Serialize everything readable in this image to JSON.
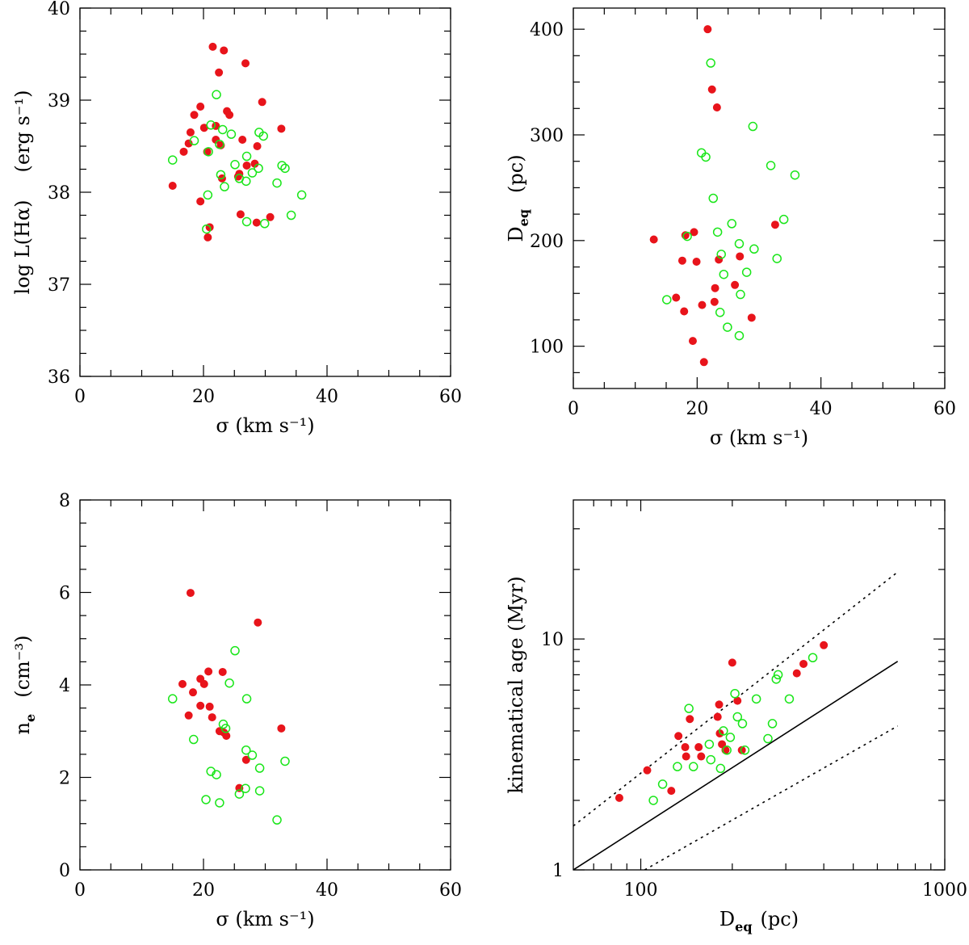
{
  "colors": {
    "red": "#e8141b",
    "green": "#19e619",
    "axis": "#000000"
  },
  "chart_data": [
    {
      "id": "p1",
      "type": "scatter",
      "xlabel": "σ (km s⁻¹)",
      "ylabel_parts": [
        "log L(Hα)",
        "(erg s⁻¹)"
      ],
      "xlim": [
        0,
        60
      ],
      "ylim": [
        36,
        40
      ],
      "xticks": [
        0,
        20,
        40,
        60
      ],
      "xtick_labels": [
        "0",
        "20",
        "40",
        "60"
      ],
      "yticks": [
        36,
        37,
        38,
        39,
        40
      ],
      "ytick_labels": [
        "36",
        "37",
        "38",
        "39",
        "40"
      ],
      "series": [
        {
          "name": "red filled",
          "color": "red",
          "marker": "filled",
          "points": [
            [
              21.5,
              39.58
            ],
            [
              23.3,
              39.54
            ],
            [
              26.8,
              39.4
            ],
            [
              22.5,
              39.3
            ],
            [
              29.5,
              38.98
            ],
            [
              19.5,
              38.93
            ],
            [
              18.5,
              38.84
            ],
            [
              23.8,
              38.88
            ],
            [
              24.2,
              38.84
            ],
            [
              20.1,
              38.7
            ],
            [
              22.0,
              38.72
            ],
            [
              32.6,
              38.69
            ],
            [
              17.9,
              38.65
            ],
            [
              22.0,
              38.57
            ],
            [
              26.3,
              38.57
            ],
            [
              17.6,
              38.53
            ],
            [
              28.7,
              38.5
            ],
            [
              16.8,
              38.44
            ],
            [
              20.6,
              38.44
            ],
            [
              22.8,
              38.51
            ],
            [
              23.0,
              38.15
            ],
            [
              27.0,
              38.29
            ],
            [
              28.3,
              38.31
            ],
            [
              25.8,
              38.2
            ],
            [
              25.6,
              38.17
            ],
            [
              15.0,
              38.07
            ],
            [
              19.5,
              37.9
            ],
            [
              30.8,
              37.73
            ],
            [
              26.0,
              37.76
            ],
            [
              28.6,
              37.67
            ],
            [
              21.0,
              37.62
            ],
            [
              20.7,
              37.51
            ]
          ]
        },
        {
          "name": "green open",
          "color": "green",
          "marker": "open",
          "points": [
            [
              22.1,
              39.06
            ],
            [
              21.2,
              38.73
            ],
            [
              23.1,
              38.68
            ],
            [
              24.5,
              38.63
            ],
            [
              29.0,
              38.65
            ],
            [
              29.7,
              38.61
            ],
            [
              18.5,
              38.56
            ],
            [
              22.6,
              38.52
            ],
            [
              20.8,
              38.44
            ],
            [
              15.0,
              38.35
            ],
            [
              25.1,
              38.3
            ],
            [
              27.0,
              38.39
            ],
            [
              28.9,
              38.26
            ],
            [
              32.7,
              38.29
            ],
            [
              33.2,
              38.26
            ],
            [
              22.8,
              38.19
            ],
            [
              25.8,
              38.15
            ],
            [
              26.9,
              38.12
            ],
            [
              27.9,
              38.21
            ],
            [
              23.4,
              38.06
            ],
            [
              31.9,
              38.1
            ],
            [
              20.7,
              37.97
            ],
            [
              35.9,
              37.97
            ],
            [
              34.2,
              37.75
            ],
            [
              27.0,
              37.68
            ],
            [
              29.9,
              37.66
            ],
            [
              20.5,
              37.6
            ]
          ]
        }
      ]
    },
    {
      "id": "p2",
      "type": "scatter",
      "xlabel": "σ (km s⁻¹)",
      "ylabel_parts": [
        "D",
        "eq",
        "(pc)"
      ],
      "xlim": [
        0,
        60
      ],
      "ylim": [
        60,
        420
      ],
      "xticks": [
        0,
        20,
        40,
        60
      ],
      "xtick_labels": [
        "0",
        "20",
        "40",
        "60"
      ],
      "yticks": [
        100,
        200,
        300,
        400
      ],
      "ytick_labels": [
        "100",
        "200",
        "300",
        "400"
      ],
      "series": [
        {
          "name": "red filled",
          "color": "red",
          "marker": "filled",
          "points": [
            [
              21.7,
              400
            ],
            [
              22.4,
              343
            ],
            [
              23.2,
              326
            ],
            [
              13.0,
              201
            ],
            [
              19.5,
              208
            ],
            [
              18.1,
              205
            ],
            [
              32.6,
              215
            ],
            [
              17.6,
              181
            ],
            [
              19.9,
              180
            ],
            [
              23.5,
              182
            ],
            [
              26.9,
              185
            ],
            [
              22.9,
              155
            ],
            [
              26.1,
              158
            ],
            [
              16.6,
              146
            ],
            [
              22.8,
              142
            ],
            [
              20.8,
              139
            ],
            [
              17.9,
              133
            ],
            [
              28.8,
              127
            ],
            [
              19.3,
              105
            ],
            [
              21.1,
              85
            ]
          ]
        },
        {
          "name": "green open",
          "color": "green",
          "marker": "open",
          "points": [
            [
              22.2,
              368
            ],
            [
              29.0,
              308
            ],
            [
              20.7,
              283
            ],
            [
              21.4,
              279
            ],
            [
              31.9,
              271
            ],
            [
              35.8,
              262
            ],
            [
              22.6,
              240
            ],
            [
              25.6,
              216
            ],
            [
              34.0,
              220
            ],
            [
              23.3,
              208
            ],
            [
              18.4,
              204
            ],
            [
              26.8,
              197
            ],
            [
              29.2,
              192
            ],
            [
              23.9,
              187
            ],
            [
              32.9,
              183
            ],
            [
              28.0,
              170
            ],
            [
              24.3,
              168
            ],
            [
              27.0,
              149
            ],
            [
              15.1,
              144
            ],
            [
              23.7,
              132
            ],
            [
              24.9,
              118
            ],
            [
              26.8,
              110
            ]
          ]
        }
      ]
    },
    {
      "id": "p3",
      "type": "scatter",
      "xlabel": "σ (km s⁻¹)",
      "ylabel_parts": [
        "n",
        "e",
        "(cm⁻³)"
      ],
      "xlim": [
        0,
        60
      ],
      "ylim": [
        0,
        8
      ],
      "xticks": [
        0,
        20,
        40,
        60
      ],
      "xtick_labels": [
        "0",
        "20",
        "40",
        "60"
      ],
      "yticks": [
        0,
        2,
        4,
        6,
        8
      ],
      "ytick_labels": [
        "0",
        "2",
        "4",
        "6",
        "8"
      ],
      "series": [
        {
          "name": "red filled",
          "color": "red",
          "marker": "filled",
          "points": [
            [
              17.9,
              5.99
            ],
            [
              28.8,
              5.35
            ],
            [
              16.6,
              4.02
            ],
            [
              19.5,
              4.13
            ],
            [
              20.1,
              4.02
            ],
            [
              20.8,
              4.29
            ],
            [
              23.1,
              4.28
            ],
            [
              18.3,
              3.84
            ],
            [
              19.5,
              3.55
            ],
            [
              21.0,
              3.53
            ],
            [
              17.6,
              3.34
            ],
            [
              21.4,
              3.3
            ],
            [
              22.6,
              3.0
            ],
            [
              23.3,
              2.97
            ],
            [
              23.7,
              2.9
            ],
            [
              32.6,
              3.06
            ],
            [
              26.9,
              2.38
            ],
            [
              25.8,
              1.77
            ]
          ]
        },
        {
          "name": "green open",
          "color": "green",
          "marker": "open",
          "points": [
            [
              25.1,
              4.74
            ],
            [
              24.2,
              4.04
            ],
            [
              15.0,
              3.7
            ],
            [
              27.0,
              3.7
            ],
            [
              23.2,
              3.15
            ],
            [
              23.6,
              3.06
            ],
            [
              18.4,
              2.82
            ],
            [
              26.9,
              2.59
            ],
            [
              27.9,
              2.48
            ],
            [
              33.2,
              2.35
            ],
            [
              21.2,
              2.13
            ],
            [
              22.1,
              2.06
            ],
            [
              29.1,
              2.2
            ],
            [
              20.4,
              1.52
            ],
            [
              22.6,
              1.45
            ],
            [
              25.8,
              1.64
            ],
            [
              26.8,
              1.76
            ],
            [
              29.1,
              1.71
            ],
            [
              31.9,
              1.08
            ]
          ]
        }
      ]
    },
    {
      "id": "p4",
      "type": "scatter",
      "log": true,
      "xlabel_parts": [
        "D",
        "eq",
        "(pc)"
      ],
      "ylabel": "kinematical age (Myr)",
      "xlim": [
        60,
        1000
      ],
      "ylim": [
        1,
        40
      ],
      "xticks": [
        100,
        1000
      ],
      "xtick_labels": [
        "100",
        "1000"
      ],
      "xminor": [
        70,
        80,
        90,
        200,
        300,
        400,
        500,
        600,
        700,
        800,
        900
      ],
      "yticks": [
        1,
        10
      ],
      "ytick_labels": [
        "1",
        "10"
      ],
      "yminor": [
        2,
        3,
        4,
        5,
        6,
        7,
        8,
        9,
        20,
        30
      ],
      "lines": [
        {
          "name": "solid line",
          "style": "solid",
          "points": [
            [
              60,
              1.0
            ],
            [
              700,
              8.0
            ]
          ]
        },
        {
          "name": "upper dotted line",
          "style": "dotted",
          "points": [
            [
              60,
              1.55
            ],
            [
              700,
              19.5
            ]
          ]
        },
        {
          "name": "lower dotted line",
          "style": "dotted",
          "points": [
            [
              103,
              1.0
            ],
            [
              700,
              4.2
            ]
          ]
        }
      ],
      "series": [
        {
          "name": "red filled",
          "color": "red",
          "marker": "filled",
          "points": [
            [
              85,
              2.05
            ],
            [
              105,
              2.7
            ],
            [
              126,
              2.2
            ],
            [
              133,
              3.8
            ],
            [
              140,
              3.4
            ],
            [
              141,
              3.1
            ],
            [
              145,
              4.5
            ],
            [
              155,
              3.4
            ],
            [
              158,
              3.1
            ],
            [
              181,
              5.2
            ],
            [
              179,
              4.6
            ],
            [
              182,
              3.9
            ],
            [
              185,
              3.5
            ],
            [
              190,
              3.3
            ],
            [
              200,
              7.9
            ],
            [
              208,
              5.4
            ],
            [
              215,
              3.3
            ],
            [
              326,
              7.1
            ],
            [
              343,
              7.8
            ],
            [
              400,
              9.4
            ]
          ]
        },
        {
          "name": "green open",
          "color": "green",
          "marker": "open",
          "points": [
            [
              110,
              2.0
            ],
            [
              118,
              2.35
            ],
            [
              132,
              2.8
            ],
            [
              144,
              5.0
            ],
            [
              149,
              2.8
            ],
            [
              168,
              3.5
            ],
            [
              170,
              3.0
            ],
            [
              183,
              2.75
            ],
            [
              187,
              4.0
            ],
            [
              192,
              3.3
            ],
            [
              197,
              3.75
            ],
            [
              204,
              5.8
            ],
            [
              208,
              4.6
            ],
            [
              216,
              4.3
            ],
            [
              220,
              3.3
            ],
            [
              240,
              5.5
            ],
            [
              262,
              3.7
            ],
            [
              271,
              4.3
            ],
            [
              279,
              6.7
            ],
            [
              283,
              7.0
            ],
            [
              308,
              5.5
            ],
            [
              368,
              8.3
            ]
          ]
        }
      ]
    }
  ]
}
